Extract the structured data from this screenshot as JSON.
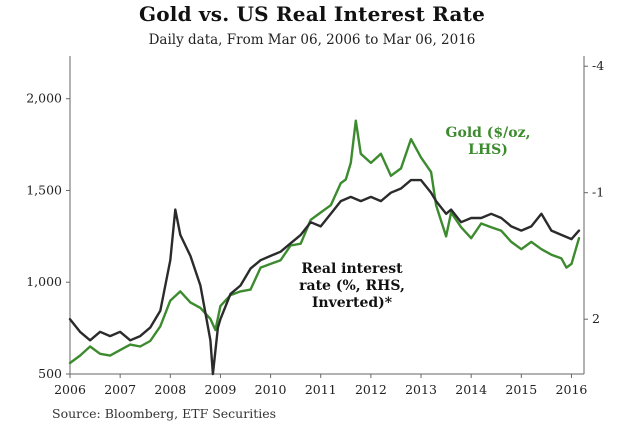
{
  "chart_data": {
    "type": "line",
    "title": "Gold vs. US Real Interest Rate",
    "subtitle": "Daily data, From Mar 06, 2006 to Mar 06, 2016",
    "source": "Source: Bloomberg, ETF Securities",
    "x_tick_labels": [
      "2006",
      "2007",
      "2008",
      "2009",
      "2010",
      "2011",
      "2012",
      "2013",
      "2014",
      "2015",
      "2016"
    ],
    "xlim": [
      2006.0,
      2016.25
    ],
    "left_axis": {
      "ylim": [
        500,
        2200
      ],
      "ticks": [
        500,
        1000,
        1500,
        2000
      ],
      "tick_labels": [
        "500",
        "1,000",
        "1,500",
        "2,000"
      ]
    },
    "right_axis": {
      "ylim": [
        3.3,
        -4.1
      ],
      "inverted": true,
      "ticks": [
        -4,
        -1,
        2
      ],
      "tick_labels": [
        "-4",
        "-1",
        "2"
      ]
    },
    "annotations": {
      "gold_label": [
        "Gold ($/oz,",
        "LHS)"
      ],
      "rate_label": [
        "Real interest",
        "rate (%, RHS,",
        "Inverted)*"
      ]
    },
    "colors": {
      "gold": "#3d8b2f",
      "rate": "#2b2b2b",
      "axis": "#666666",
      "text": "#222222"
    },
    "series": [
      {
        "name": "Gold ($/oz, LHS)",
        "axis": "left",
        "x": [
          2006.0,
          2006.2,
          2006.4,
          2006.6,
          2006.8,
          2007.0,
          2007.2,
          2007.4,
          2007.6,
          2007.8,
          2008.0,
          2008.2,
          2008.4,
          2008.6,
          2008.8,
          2008.9,
          2009.0,
          2009.2,
          2009.4,
          2009.6,
          2009.8,
          2010.0,
          2010.2,
          2010.4,
          2010.6,
          2010.8,
          2011.0,
          2011.2,
          2011.4,
          2011.5,
          2011.6,
          2011.7,
          2011.8,
          2012.0,
          2012.2,
          2012.4,
          2012.6,
          2012.8,
          2013.0,
          2013.2,
          2013.3,
          2013.5,
          2013.6,
          2013.8,
          2014.0,
          2014.2,
          2014.4,
          2014.6,
          2014.8,
          2015.0,
          2015.2,
          2015.4,
          2015.6,
          2015.8,
          2015.9,
          2016.0,
          2016.15
        ],
        "values": [
          560,
          600,
          650,
          610,
          600,
          630,
          660,
          650,
          680,
          760,
          900,
          950,
          890,
          860,
          800,
          740,
          870,
          930,
          950,
          960,
          1080,
          1100,
          1120,
          1200,
          1210,
          1340,
          1380,
          1420,
          1540,
          1560,
          1650,
          1880,
          1700,
          1650,
          1700,
          1580,
          1620,
          1780,
          1680,
          1600,
          1420,
          1250,
          1380,
          1300,
          1240,
          1320,
          1300,
          1280,
          1220,
          1180,
          1220,
          1180,
          1150,
          1130,
          1080,
          1100,
          1240
        ]
      },
      {
        "name": "Real interest rate (%, RHS, Inverted)*",
        "axis": "right",
        "x": [
          2006.0,
          2006.2,
          2006.4,
          2006.6,
          2006.8,
          2007.0,
          2007.2,
          2007.4,
          2007.6,
          2007.8,
          2008.0,
          2008.1,
          2008.2,
          2008.4,
          2008.6,
          2008.8,
          2008.85,
          2008.95,
          2009.0,
          2009.2,
          2009.4,
          2009.6,
          2009.8,
          2010.0,
          2010.2,
          2010.4,
          2010.6,
          2010.8,
          2011.0,
          2011.2,
          2011.4,
          2011.6,
          2011.8,
          2012.0,
          2012.2,
          2012.4,
          2012.6,
          2012.8,
          2013.0,
          2013.2,
          2013.3,
          2013.5,
          2013.6,
          2013.8,
          2014.0,
          2014.2,
          2014.4,
          2014.6,
          2014.8,
          2015.0,
          2015.2,
          2015.4,
          2015.6,
          2015.8,
          2016.0,
          2016.15
        ],
        "values": [
          2.0,
          2.3,
          2.5,
          2.3,
          2.4,
          2.3,
          2.5,
          2.4,
          2.2,
          1.8,
          0.6,
          -0.6,
          0.0,
          0.5,
          1.2,
          2.5,
          3.3,
          2.2,
          2.0,
          1.4,
          1.2,
          0.8,
          0.6,
          0.5,
          0.4,
          0.2,
          0.0,
          -0.3,
          -0.2,
          -0.5,
          -0.8,
          -0.9,
          -0.8,
          -0.9,
          -0.8,
          -1.0,
          -1.1,
          -1.3,
          -1.3,
          -1.0,
          -0.8,
          -0.5,
          -0.6,
          -0.3,
          -0.4,
          -0.4,
          -0.5,
          -0.4,
          -0.2,
          -0.1,
          -0.2,
          -0.5,
          -0.1,
          0.0,
          0.1,
          -0.1
        ]
      }
    ]
  }
}
